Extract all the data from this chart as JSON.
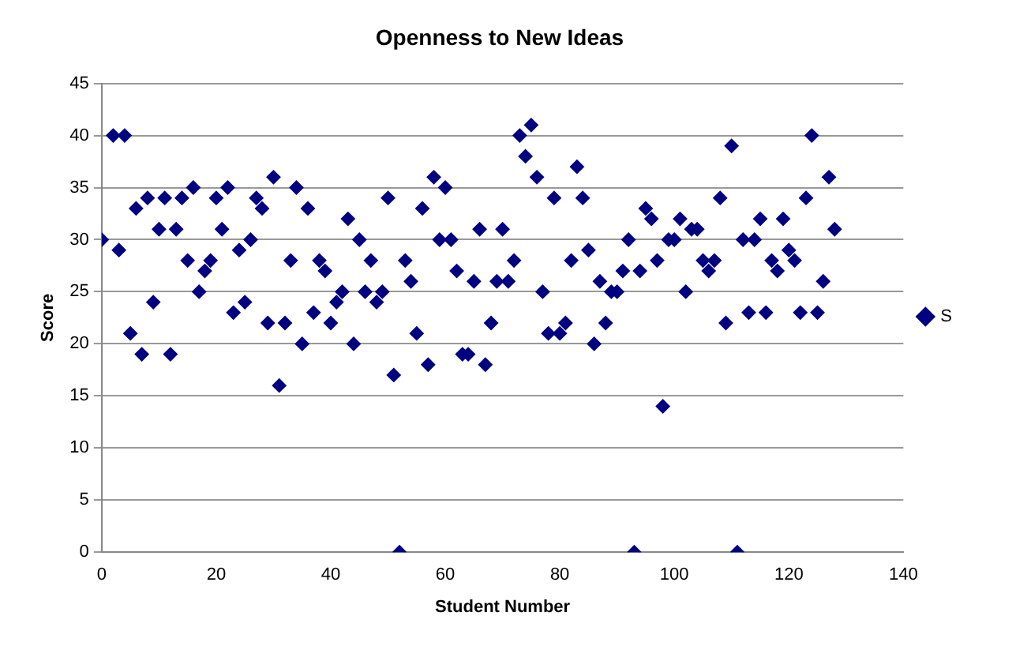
{
  "chart_data": {
    "type": "scatter",
    "title": "Openness to New Ideas",
    "xlabel": "Student Number",
    "ylabel": "Score",
    "xlim": [
      0,
      140
    ],
    "xticks": [
      0,
      20,
      40,
      60,
      80,
      100,
      120,
      140
    ],
    "ylim": [
      0,
      45
    ],
    "yticks": [
      0,
      5,
      10,
      15,
      20,
      25,
      30,
      35,
      40,
      45
    ],
    "grid": "y",
    "legend": "right",
    "marker": "diamond",
    "x": [
      0,
      2,
      3,
      4,
      5,
      6,
      7,
      8,
      9,
      10,
      11,
      12,
      13,
      14,
      15,
      16,
      17,
      18,
      19,
      20,
      21,
      22,
      23,
      24,
      25,
      26,
      27,
      28,
      29,
      30,
      31,
      32,
      33,
      34,
      35,
      36,
      37,
      38,
      39,
      40,
      41,
      42,
      43,
      44,
      45,
      46,
      47,
      48,
      49,
      50,
      51,
      52,
      53,
      54,
      55,
      56,
      57,
      58,
      59,
      60,
      61,
      62,
      63,
      64,
      65,
      66,
      67,
      68,
      69,
      70,
      71,
      72,
      73,
      74,
      75,
      76,
      77,
      78,
      79,
      80,
      81,
      82,
      83,
      84,
      85,
      86,
      87,
      88,
      89,
      90,
      91,
      92,
      93,
      94,
      95,
      96,
      97,
      98,
      99,
      100,
      101,
      102,
      103,
      104,
      105,
      106,
      107,
      108,
      109,
      110,
      111,
      112,
      113,
      114,
      115,
      116,
      117,
      118,
      119,
      120,
      121,
      122,
      123,
      124,
      125,
      126,
      127,
      128
    ],
    "series": [
      {
        "name": "S",
        "color": "#000080",
        "values": [
          30,
          40,
          29,
          40,
          21,
          33,
          19,
          34,
          24,
          31,
          34,
          19,
          31,
          34,
          28,
          35,
          25,
          27,
          28,
          34,
          31,
          35,
          23,
          29,
          24,
          30,
          34,
          33,
          22,
          36,
          16,
          22,
          28,
          35,
          20,
          33,
          23,
          28,
          27,
          22,
          24,
          25,
          32,
          20,
          30,
          25,
          28,
          24,
          25,
          34,
          17,
          0,
          28,
          26,
          21,
          33,
          18,
          36,
          30,
          35,
          30,
          27,
          19,
          19,
          26,
          31,
          18,
          22,
          26,
          31,
          26,
          28,
          40,
          38,
          41,
          36,
          25,
          21,
          34,
          21,
          22,
          28,
          37,
          34,
          29,
          20,
          26,
          22,
          25,
          25,
          27,
          30,
          0,
          27,
          33,
          32,
          28,
          14,
          30,
          30,
          32,
          25,
          31,
          31,
          28,
          27,
          28,
          34,
          22,
          39,
          0,
          30,
          23,
          30,
          32,
          23,
          28,
          27,
          32,
          29,
          28,
          23,
          34,
          40,
          23,
          26,
          36,
          31
        ]
      }
    ]
  }
}
